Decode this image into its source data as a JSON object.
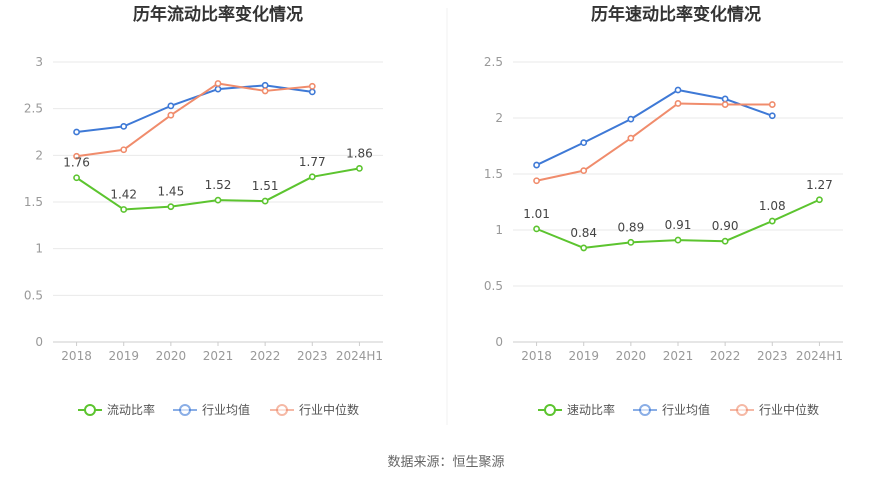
{
  "colors": {
    "company": "#5cc42f",
    "industry_avg": "#3e79d6",
    "industry_median": "#f08c6c",
    "grid": "#e9e9e9",
    "axis": "#cccccc"
  },
  "source": "数据来源：恒生聚源",
  "chart_data": [
    {
      "type": "line",
      "title": "历年流动比率变化情况",
      "categories": [
        "2018",
        "2019",
        "2020",
        "2021",
        "2022",
        "2023",
        "2024H1"
      ],
      "ylim": [
        0,
        3
      ],
      "yticks": [
        0,
        0.5,
        1,
        1.5,
        2,
        2.5,
        3
      ],
      "ytick_labels": [
        "0",
        "0.5",
        "1",
        "1.5",
        "2",
        "2.5",
        "3"
      ],
      "grid": true,
      "legend": "bottom-center",
      "series": [
        {
          "name": "流动比率",
          "key": "company",
          "values": [
            1.76,
            1.42,
            1.45,
            1.52,
            1.51,
            1.77,
            1.86
          ],
          "labels": [
            "1.76",
            "1.42",
            "1.45",
            "1.52",
            "1.51",
            "1.77",
            "1.86"
          ]
        },
        {
          "name": "行业均值",
          "key": "industry_avg",
          "values": [
            2.25,
            2.31,
            2.53,
            2.71,
            2.75,
            2.68,
            null
          ]
        },
        {
          "name": "行业中位数",
          "key": "industry_median",
          "values": [
            1.99,
            2.06,
            2.43,
            2.77,
            2.69,
            2.74,
            null
          ]
        }
      ]
    },
    {
      "type": "line",
      "title": "历年速动比率变化情况",
      "categories": [
        "2018",
        "2019",
        "2020",
        "2021",
        "2022",
        "2023",
        "2024H1"
      ],
      "ylim": [
        0,
        2.5
      ],
      "yticks": [
        0,
        0.5,
        1,
        1.5,
        2,
        2.5
      ],
      "ytick_labels": [
        "0",
        "0.5",
        "1",
        "1.5",
        "2",
        "2.5"
      ],
      "grid": true,
      "legend": "bottom-center",
      "series": [
        {
          "name": "速动比率",
          "key": "company",
          "values": [
            1.01,
            0.84,
            0.89,
            0.91,
            0.9,
            1.08,
            1.27
          ],
          "labels": [
            "1.01",
            "0.84",
            "0.89",
            "0.91",
            "0.90",
            "1.08",
            "1.27"
          ]
        },
        {
          "name": "行业均值",
          "key": "industry_avg",
          "values": [
            1.58,
            1.78,
            1.99,
            2.25,
            2.17,
            2.02,
            null
          ]
        },
        {
          "name": "行业中位数",
          "key": "industry_median",
          "values": [
            1.44,
            1.53,
            1.82,
            2.13,
            2.12,
            2.12,
            null
          ]
        }
      ]
    }
  ]
}
